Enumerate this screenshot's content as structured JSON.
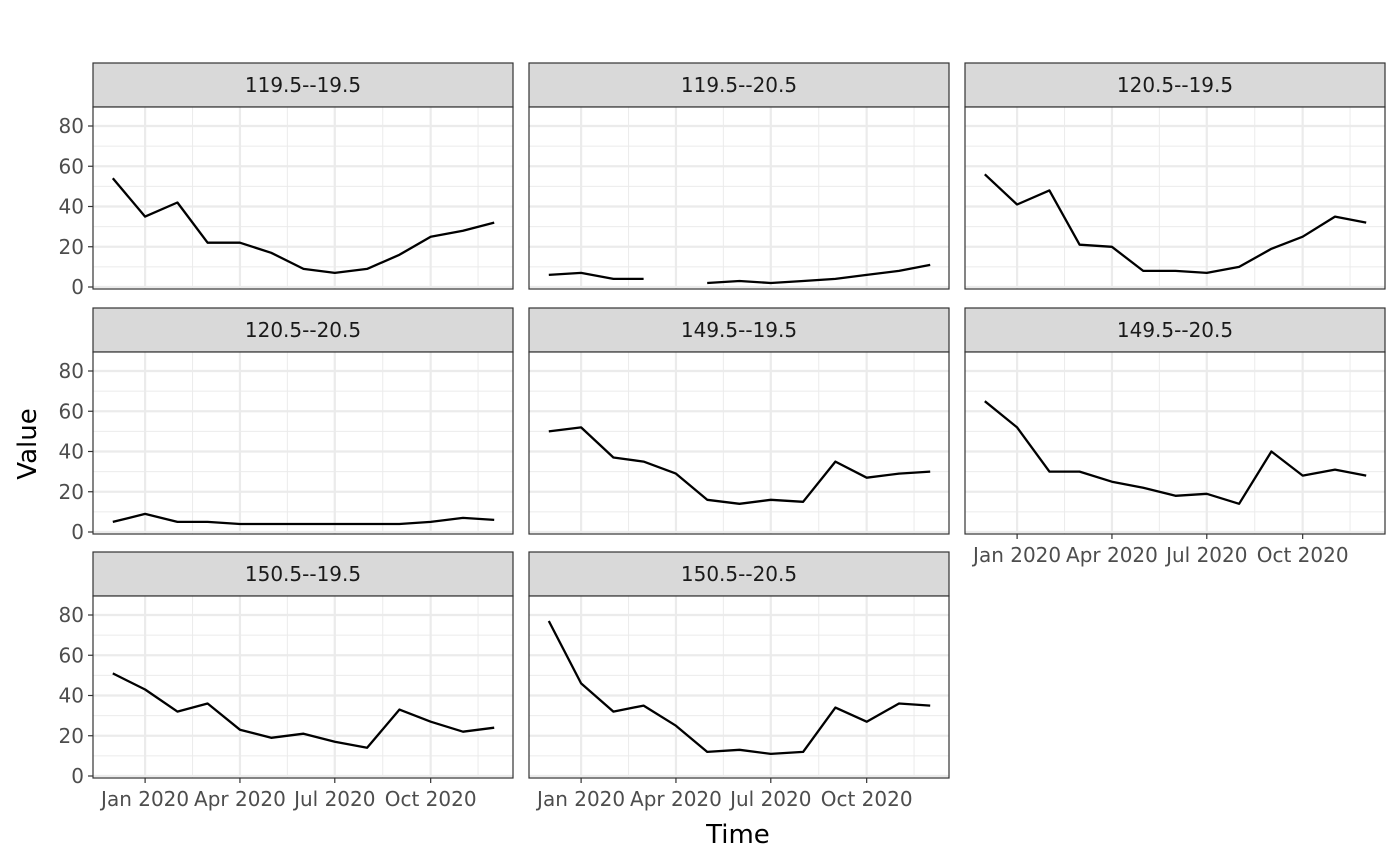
{
  "chart_data": {
    "type": "line",
    "facet_layout": "wrap",
    "facet_columns": 3,
    "xlabel": "Time",
    "ylabel": "Value",
    "ylim": [
      0,
      80
    ],
    "y_ticks": [
      0,
      20,
      40,
      60,
      80
    ],
    "x_range": [
      "2019-11-12",
      "2020-12-19"
    ],
    "x_ticks": [
      "2020-01-01",
      "2020-04-01",
      "2020-07-01",
      "2020-10-01"
    ],
    "x_tick_labels": [
      "Jan 2020",
      "Apr 2020",
      "Jul 2020",
      "Oct 2020"
    ],
    "x": [
      "2019-12-01",
      "2020-01-01",
      "2020-02-01",
      "2020-03-01",
      "2020-04-01",
      "2020-05-01",
      "2020-06-01",
      "2020-07-01",
      "2020-08-01",
      "2020-09-01",
      "2020-10-01",
      "2020-11-01",
      "2020-12-01"
    ],
    "grid": true,
    "legend": "none",
    "line_color": "#000000",
    "panel_border_color": "#333333",
    "strip_fill": "#d9d9d9",
    "grid_color": "#ebebeb",
    "panels": [
      {
        "label": "119.5--19.5",
        "values": [
          54,
          35,
          42,
          22,
          22,
          17,
          9,
          7,
          9,
          16,
          25,
          28,
          32
        ]
      },
      {
        "label": "119.5--20.5",
        "values": [
          6,
          7,
          4,
          4,
          null,
          2,
          3,
          2,
          3,
          4,
          6,
          8,
          11
        ]
      },
      {
        "label": "120.5--19.5",
        "values": [
          56,
          41,
          48,
          21,
          20,
          8,
          8,
          7,
          10,
          19,
          25,
          35,
          32
        ]
      },
      {
        "label": "120.5--20.5",
        "values": [
          5,
          9,
          5,
          5,
          4,
          4,
          4,
          4,
          4,
          4,
          5,
          7,
          6
        ]
      },
      {
        "label": "149.5--19.5",
        "values": [
          50,
          52,
          37,
          35,
          29,
          16,
          14,
          16,
          15,
          35,
          27,
          29,
          30
        ]
      },
      {
        "label": "149.5--20.5",
        "values": [
          65,
          52,
          30,
          30,
          25,
          22,
          18,
          19,
          14,
          40,
          28,
          31,
          28
        ]
      },
      {
        "label": "150.5--19.5",
        "values": [
          51,
          43,
          32,
          36,
          23,
          19,
          21,
          17,
          14,
          33,
          27,
          22,
          24
        ]
      },
      {
        "label": "150.5--20.5",
        "values": [
          77,
          46,
          32,
          35,
          25,
          12,
          13,
          11,
          12,
          34,
          27,
          36,
          35
        ]
      }
    ]
  }
}
